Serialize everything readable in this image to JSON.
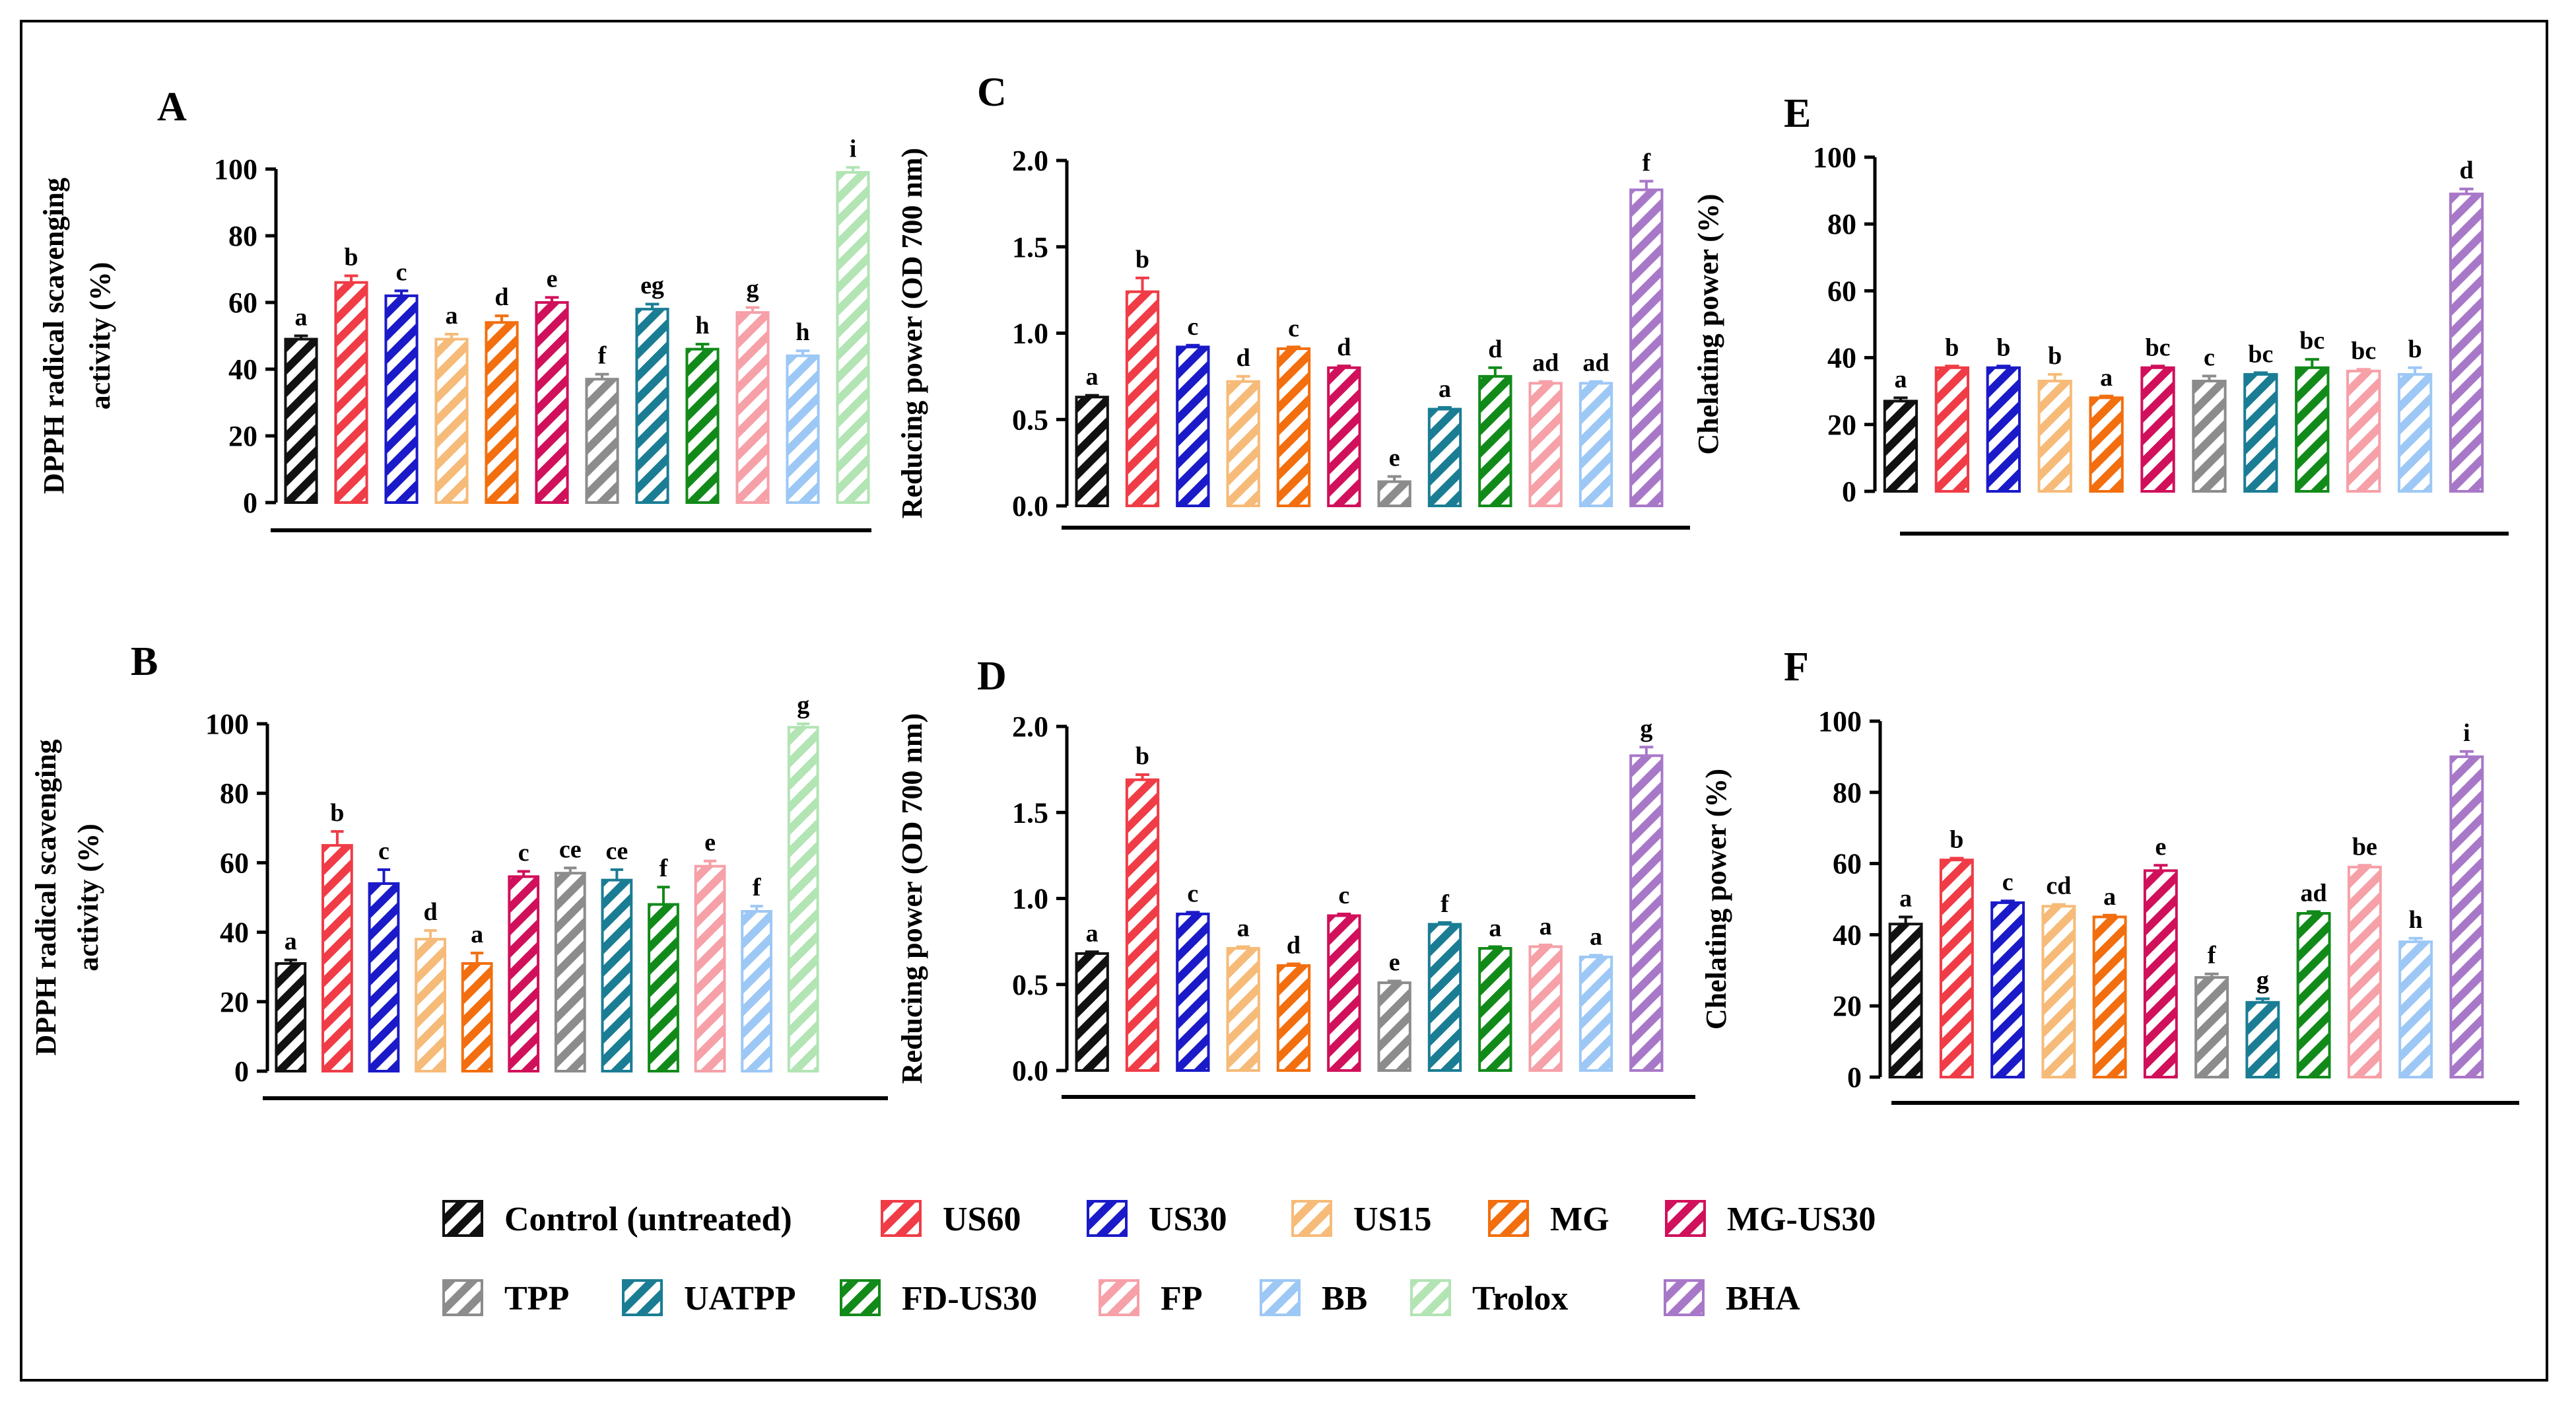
{
  "chart_data": [
    {
      "panel": "A",
      "type": "bar",
      "ylabel": [
        "DPPH radical scavenging",
        "activity (%)"
      ],
      "ylim": [
        0,
        100
      ],
      "ticks": [
        0,
        20,
        40,
        60,
        80,
        100
      ],
      "tick_format": "int",
      "categories": [
        "Control (untreated)",
        "US60",
        "US30",
        "US15",
        "MG",
        "MG-US30",
        "TPP",
        "UATPP",
        "FD-US30",
        "FP",
        "BB",
        "Trolox"
      ],
      "values": [
        49,
        66,
        62,
        49,
        54,
        60,
        37,
        58,
        46,
        57,
        44,
        99
      ],
      "errors": [
        1,
        2,
        1.5,
        1.5,
        2,
        1.5,
        1.5,
        1.5,
        1.5,
        1.5,
        1.5,
        1.5
      ],
      "letters": [
        "a",
        "b",
        "c",
        "a",
        "d",
        "e",
        "f",
        "eg",
        "h",
        "g",
        "h",
        "i"
      ]
    },
    {
      "panel": "B",
      "type": "bar",
      "ylabel": [
        "DPPH radical scavenging",
        "activity (%)"
      ],
      "ylim": [
        0,
        100
      ],
      "ticks": [
        0,
        20,
        40,
        60,
        80,
        100
      ],
      "tick_format": "int",
      "categories": [
        "Control (untreated)",
        "US60",
        "US30",
        "US15",
        "MG",
        "MG-US30",
        "TPP",
        "UATPP",
        "FD-US30",
        "FP",
        "BB",
        "Trolox"
      ],
      "values": [
        31,
        65,
        54,
        38,
        31,
        56,
        57,
        55,
        48,
        59,
        46,
        99
      ],
      "errors": [
        1,
        4,
        4,
        2.5,
        3,
        1.5,
        1.5,
        3,
        5,
        1.5,
        1.5,
        1
      ],
      "letters": [
        "a",
        "b",
        "c",
        "d",
        "a",
        "c",
        "ce",
        "ce",
        "f",
        "e",
        "f",
        "g"
      ]
    },
    {
      "panel": "C",
      "type": "bar",
      "ylabel": [
        "Reducing power (OD 700 nm)"
      ],
      "ylim": [
        0,
        2.0
      ],
      "ticks": [
        0,
        0.5,
        1.0,
        1.5,
        2.0
      ],
      "tick_format": "1dp",
      "categories": [
        "Control (untreated)",
        "US60",
        "US30",
        "US15",
        "MG",
        "MG-US30",
        "TPP",
        "UATPP",
        "FD-US30",
        "FP",
        "BB",
        "BHA"
      ],
      "values": [
        0.63,
        1.24,
        0.92,
        0.72,
        0.91,
        0.8,
        0.14,
        0.56,
        0.75,
        0.71,
        0.71,
        1.83
      ],
      "errors": [
        0.01,
        0.08,
        0.01,
        0.03,
        0.01,
        0.01,
        0.03,
        0.01,
        0.05,
        0.01,
        0.01,
        0.05
      ],
      "letters": [
        "a",
        "b",
        "c",
        "d",
        "c",
        "d",
        "e",
        "a",
        "d",
        "ad",
        "ad",
        "f"
      ]
    },
    {
      "panel": "D",
      "type": "bar",
      "ylabel": [
        "Reducing power (OD 700 nm)"
      ],
      "ylim": [
        0,
        2.0
      ],
      "ticks": [
        0,
        0.5,
        1.0,
        1.5,
        2.0
      ],
      "tick_format": "1dp",
      "categories": [
        "Control (untreated)",
        "US60",
        "US30",
        "US15",
        "MG",
        "MG-US30",
        "TPP",
        "UATPP",
        "FD-US30",
        "FP",
        "BB",
        "BHA"
      ],
      "values": [
        0.68,
        1.69,
        0.91,
        0.71,
        0.61,
        0.9,
        0.51,
        0.85,
        0.71,
        0.72,
        0.66,
        1.83
      ],
      "errors": [
        0.01,
        0.03,
        0.01,
        0.01,
        0.01,
        0.01,
        0.01,
        0.01,
        0.01,
        0.01,
        0.01,
        0.05
      ],
      "letters": [
        "a",
        "b",
        "c",
        "a",
        "d",
        "c",
        "e",
        "f",
        "a",
        "a",
        "a",
        "g"
      ]
    },
    {
      "panel": "E",
      "type": "bar",
      "ylabel": [
        "Chelating power (%)"
      ],
      "ylim": [
        0,
        100
      ],
      "ticks": [
        0,
        20,
        40,
        60,
        80,
        100
      ],
      "tick_format": "int",
      "categories": [
        "Control (untreated)",
        "US60",
        "US30",
        "US15",
        "MG",
        "MG-US30",
        "TPP",
        "UATPP",
        "FD-US30",
        "FP",
        "BB",
        "BHA"
      ],
      "values": [
        27,
        37,
        37,
        33,
        28,
        37,
        33,
        35,
        37,
        36,
        35,
        89
      ],
      "errors": [
        1,
        0.5,
        0.5,
        2,
        0.5,
        0.5,
        1.5,
        0.5,
        2.5,
        0.5,
        2,
        1.5
      ],
      "letters": [
        "a",
        "b",
        "b",
        "b",
        "a",
        "bc",
        "c",
        "bc",
        "bc",
        "bc",
        "b",
        "d"
      ]
    },
    {
      "panel": "F",
      "type": "bar",
      "ylabel": [
        "Chelating power (%)"
      ],
      "ylim": [
        0,
        100
      ],
      "ticks": [
        0,
        20,
        40,
        60,
        80,
        100
      ],
      "tick_format": "int",
      "categories": [
        "Control (untreated)",
        "US60",
        "US30",
        "US15",
        "MG",
        "MG-US30",
        "TPP",
        "UATPP",
        "FD-US30",
        "FP",
        "BB",
        "BHA"
      ],
      "values": [
        43,
        61,
        49,
        48,
        45,
        58,
        28,
        21,
        46,
        59,
        38,
        90
      ],
      "errors": [
        2,
        0.5,
        0.5,
        0.5,
        0.5,
        1.5,
        1,
        1,
        0.5,
        0.5,
        1,
        1.5
      ],
      "letters": [
        "a",
        "b",
        "c",
        "cd",
        "a",
        "e",
        "f",
        "g",
        "ad",
        "be",
        "h",
        "i"
      ]
    }
  ],
  "legend": [
    {
      "label": "Control (untreated)",
      "color": "#111111"
    },
    {
      "label": "US60",
      "color": "#f03c46"
    },
    {
      "label": "US30",
      "color": "#1a1ac8"
    },
    {
      "label": "US15",
      "color": "#f6bb78"
    },
    {
      "label": "MG",
      "color": "#f26e0e"
    },
    {
      "label": "MG-US30",
      "color": "#d0105a"
    },
    {
      "label": "TPP",
      "color": "#8c8c8c"
    },
    {
      "label": "UATPP",
      "color": "#1a7d94"
    },
    {
      "label": "FD-US30",
      "color": "#128a1a"
    },
    {
      "label": "FP",
      "color": "#f6a0a8"
    },
    {
      "label": "BB",
      "color": "#9dc8f5"
    },
    {
      "label": "Trolox",
      "color": "#b2e4b4"
    },
    {
      "label": "BHA",
      "color": "#a878c8"
    }
  ]
}
